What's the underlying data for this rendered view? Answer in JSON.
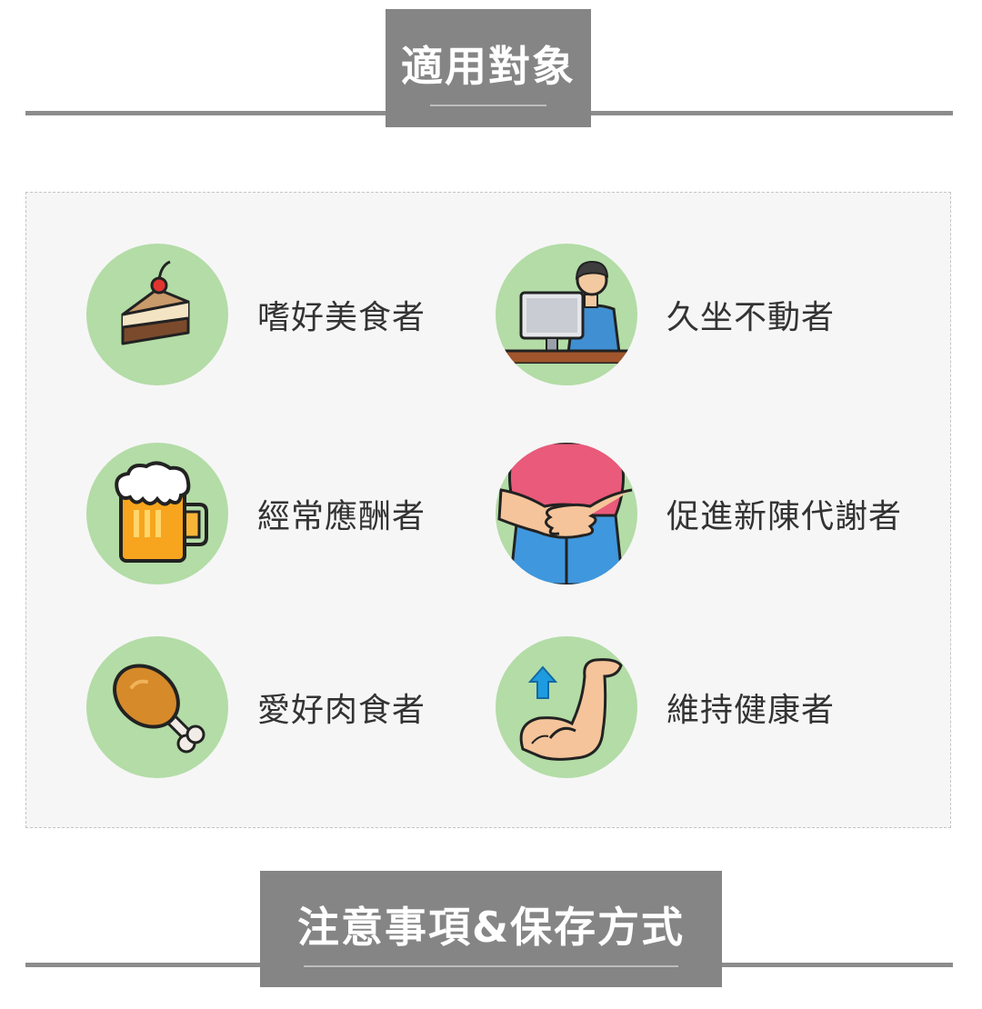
{
  "sections": {
    "suitable_title": "適用對象",
    "notice_title": "注意事項&保存方式"
  },
  "targets": [
    {
      "label": "嗜好美食者",
      "icon": "cake-icon"
    },
    {
      "label": "久坐不動者",
      "icon": "office-worker-icon"
    },
    {
      "label": "經常應酬者",
      "icon": "beer-mug-icon"
    },
    {
      "label": "促進新陳代謝者",
      "icon": "belly-icon"
    },
    {
      "label": "愛好肉食者",
      "icon": "chicken-drumstick-icon"
    },
    {
      "label": "維持健康者",
      "icon": "flexed-arm-icon"
    }
  ],
  "colors": {
    "header_box": "#858585",
    "icon_circle": "#b3dca6",
    "panel_bg": "#f6f6f6"
  }
}
